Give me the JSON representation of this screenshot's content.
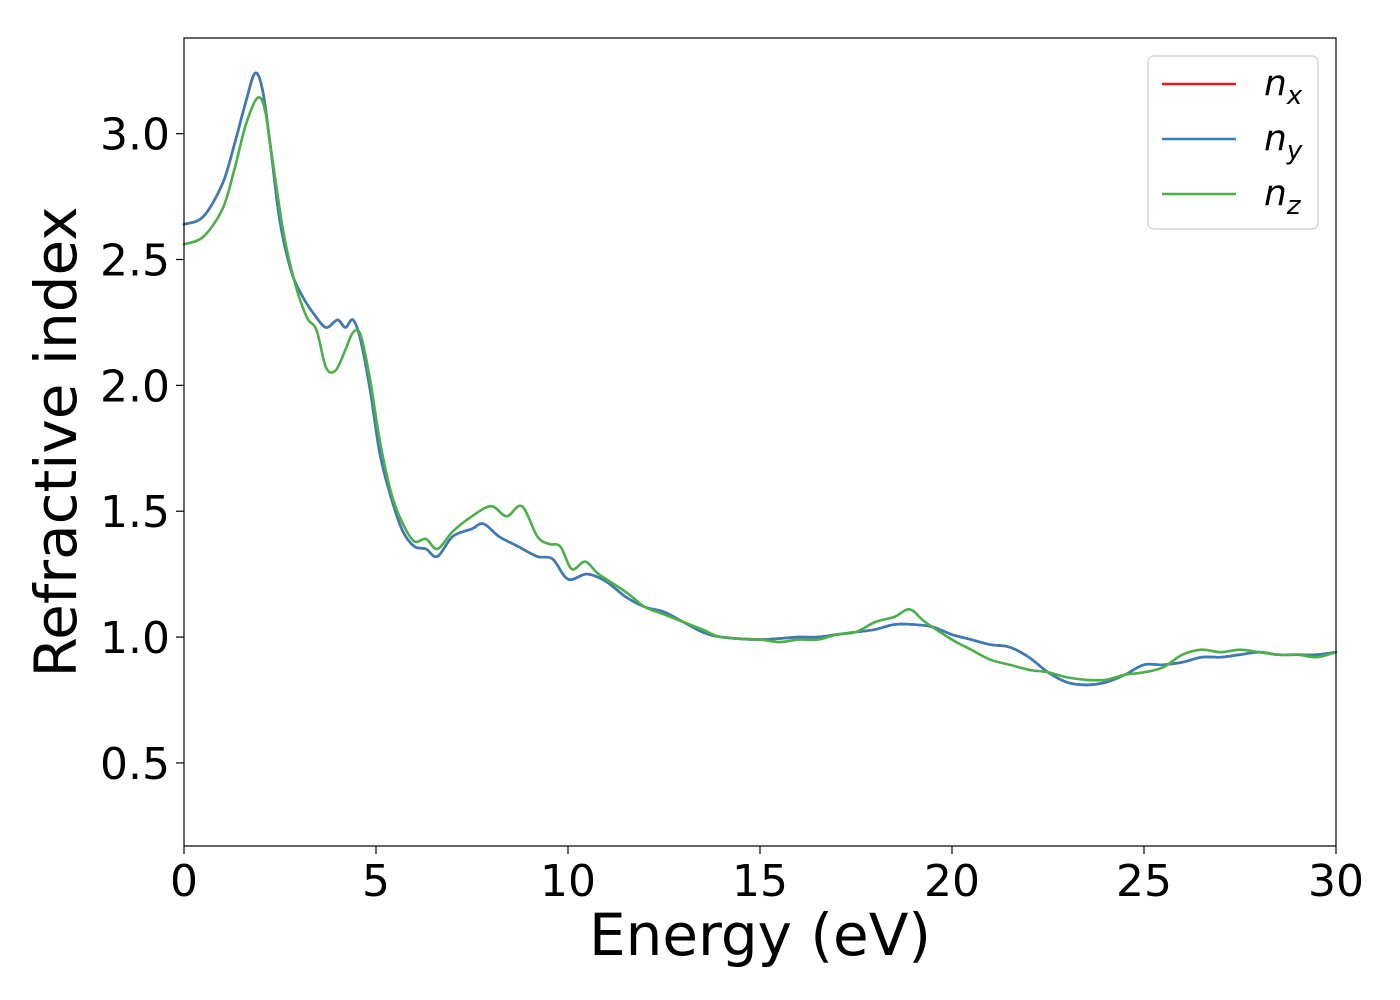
{
  "chart_data": {
    "type": "line",
    "title": "",
    "xlabel": "Energy (eV)",
    "ylabel": "Refractive index",
    "xlim": [
      0,
      30
    ],
    "ylim": [
      0.17,
      3.38
    ],
    "xticks": [
      0,
      5,
      10,
      15,
      20,
      25,
      30
    ],
    "xtick_labels": [
      "0",
      "5",
      "10",
      "15",
      "20",
      "25",
      "30"
    ],
    "yticks": [
      0.5,
      1.0,
      1.5,
      2.0,
      2.5,
      3.0
    ],
    "ytick_labels": [
      "0.5",
      "1.0",
      "1.5",
      "2.0",
      "2.5",
      "3.0"
    ],
    "grid": false,
    "legend_position": "top-right",
    "series": [
      {
        "name": "n",
        "subscript": "x",
        "color": "#e41a1c",
        "x": [
          0,
          0.5,
          1.0,
          1.3,
          1.6,
          1.85,
          2.05,
          2.25,
          2.5,
          2.8,
          3.1,
          3.4,
          3.7,
          4.0,
          4.2,
          4.4,
          4.6,
          4.85,
          5.1,
          5.4,
          5.7,
          6.0,
          6.3,
          6.6,
          7.0,
          7.5,
          7.8,
          8.2,
          8.7,
          9.2,
          9.6,
          10.0,
          10.5,
          11.0,
          11.5,
          12.0,
          12.5,
          13.0,
          13.5,
          14.0,
          15.0,
          16.0,
          16.5,
          17.0,
          17.5,
          18.0,
          18.5,
          19.0,
          19.5,
          20.0,
          20.5,
          21.0,
          21.5,
          22.0,
          22.5,
          23.0,
          23.5,
          24.0,
          24.5,
          25.0,
          25.5,
          26.0,
          26.5,
          27.0,
          27.5,
          28.0,
          28.5,
          29.0,
          29.5,
          30.0
        ],
        "y": [
          2.64,
          2.67,
          2.8,
          2.95,
          3.12,
          3.24,
          3.17,
          2.95,
          2.65,
          2.45,
          2.35,
          2.28,
          2.23,
          2.26,
          2.23,
          2.26,
          2.18,
          1.98,
          1.73,
          1.55,
          1.42,
          1.36,
          1.35,
          1.32,
          1.4,
          1.43,
          1.45,
          1.4,
          1.36,
          1.32,
          1.31,
          1.23,
          1.25,
          1.22,
          1.16,
          1.12,
          1.1,
          1.06,
          1.02,
          1.0,
          0.99,
          1.0,
          1.0,
          1.01,
          1.02,
          1.03,
          1.05,
          1.05,
          1.04,
          1.01,
          0.99,
          0.97,
          0.96,
          0.92,
          0.86,
          0.82,
          0.81,
          0.82,
          0.85,
          0.89,
          0.89,
          0.9,
          0.92,
          0.92,
          0.93,
          0.94,
          0.93,
          0.93,
          0.93,
          0.94
        ]
      },
      {
        "name": "n",
        "subscript": "y",
        "color": "#377eb8",
        "x": [
          0,
          0.5,
          1.0,
          1.3,
          1.6,
          1.85,
          2.05,
          2.25,
          2.5,
          2.8,
          3.1,
          3.4,
          3.7,
          4.0,
          4.2,
          4.4,
          4.6,
          4.85,
          5.1,
          5.4,
          5.7,
          6.0,
          6.3,
          6.6,
          7.0,
          7.5,
          7.8,
          8.2,
          8.7,
          9.2,
          9.6,
          10.0,
          10.5,
          11.0,
          11.5,
          12.0,
          12.5,
          13.0,
          13.5,
          14.0,
          15.0,
          16.0,
          16.5,
          17.0,
          17.5,
          18.0,
          18.5,
          19.0,
          19.5,
          20.0,
          20.5,
          21.0,
          21.5,
          22.0,
          22.5,
          23.0,
          23.5,
          24.0,
          24.5,
          25.0,
          25.5,
          26.0,
          26.5,
          27.0,
          27.5,
          28.0,
          28.5,
          29.0,
          29.5,
          30.0
        ],
        "y": [
          2.64,
          2.67,
          2.8,
          2.95,
          3.12,
          3.24,
          3.17,
          2.95,
          2.65,
          2.45,
          2.35,
          2.28,
          2.23,
          2.26,
          2.23,
          2.26,
          2.18,
          1.98,
          1.73,
          1.55,
          1.42,
          1.36,
          1.35,
          1.32,
          1.4,
          1.43,
          1.45,
          1.4,
          1.36,
          1.32,
          1.31,
          1.23,
          1.25,
          1.22,
          1.16,
          1.12,
          1.1,
          1.06,
          1.02,
          1.0,
          0.99,
          1.0,
          1.0,
          1.01,
          1.02,
          1.03,
          1.05,
          1.05,
          1.04,
          1.01,
          0.99,
          0.97,
          0.96,
          0.92,
          0.86,
          0.82,
          0.81,
          0.82,
          0.85,
          0.89,
          0.89,
          0.9,
          0.92,
          0.92,
          0.93,
          0.94,
          0.93,
          0.93,
          0.93,
          0.94
        ]
      },
      {
        "name": "n",
        "subscript": "z",
        "color": "#4daf4a",
        "x": [
          0,
          0.5,
          1.0,
          1.3,
          1.6,
          1.9,
          2.1,
          2.3,
          2.6,
          2.9,
          3.2,
          3.45,
          3.7,
          3.95,
          4.2,
          4.4,
          4.6,
          4.85,
          5.1,
          5.4,
          5.7,
          6.0,
          6.3,
          6.6,
          7.0,
          7.5,
          8.0,
          8.4,
          8.8,
          9.2,
          9.5,
          9.8,
          10.1,
          10.45,
          10.8,
          11.5,
          12.0,
          12.5,
          13.0,
          13.5,
          14.0,
          15.0,
          15.5,
          16.0,
          16.5,
          17.0,
          17.5,
          18.0,
          18.5,
          18.9,
          19.3,
          20.0,
          20.5,
          21.0,
          21.5,
          22.0,
          22.5,
          23.0,
          23.5,
          24.0,
          24.5,
          25.0,
          25.5,
          26.0,
          26.5,
          27.0,
          27.5,
          28.0,
          28.5,
          29.0,
          29.5,
          30.0
        ],
        "y": [
          2.56,
          2.59,
          2.7,
          2.85,
          3.03,
          3.14,
          3.1,
          2.9,
          2.6,
          2.4,
          2.27,
          2.22,
          2.07,
          2.06,
          2.14,
          2.21,
          2.2,
          2.02,
          1.78,
          1.57,
          1.45,
          1.38,
          1.39,
          1.35,
          1.42,
          1.48,
          1.52,
          1.48,
          1.52,
          1.4,
          1.37,
          1.36,
          1.27,
          1.3,
          1.25,
          1.18,
          1.12,
          1.09,
          1.06,
          1.03,
          1.0,
          0.99,
          0.98,
          0.99,
          0.99,
          1.01,
          1.02,
          1.06,
          1.08,
          1.11,
          1.06,
          0.99,
          0.95,
          0.91,
          0.89,
          0.87,
          0.86,
          0.84,
          0.83,
          0.83,
          0.85,
          0.86,
          0.88,
          0.93,
          0.95,
          0.94,
          0.95,
          0.94,
          0.93,
          0.93,
          0.92,
          0.94
        ]
      }
    ]
  }
}
